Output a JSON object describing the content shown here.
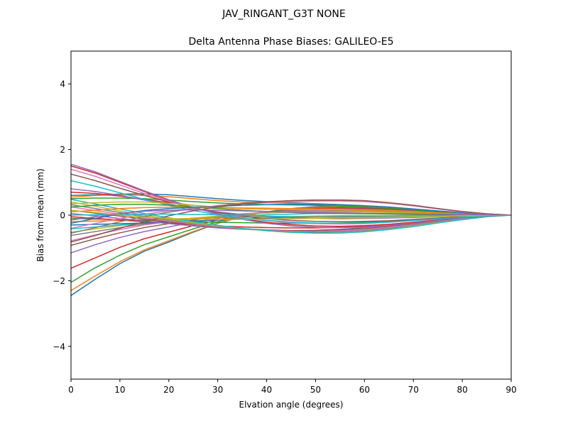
{
  "chart_data": {
    "type": "line",
    "suptitle": "JAV_RINGANT_G3T NONE",
    "title": "Delta Antenna Phase Biases: GALILEO-E5",
    "xlabel": "Elvation angle (degrees)",
    "ylabel": "Bias from mean (mm)",
    "xlim": [
      0,
      90
    ],
    "ylim": [
      -5,
      5
    ],
    "xticks": [
      0,
      10,
      20,
      30,
      40,
      50,
      60,
      70,
      80,
      90
    ],
    "yticks": [
      -4,
      -2,
      0,
      2,
      4
    ],
    "xtick_labels": [
      "0",
      "10",
      "20",
      "30",
      "40",
      "50",
      "60",
      "70",
      "80",
      "90"
    ],
    "ytick_labels": [
      "−4",
      "−2",
      "0",
      "2",
      "4"
    ],
    "grid": false,
    "legend": "none",
    "x": [
      0,
      5,
      10,
      15,
      20,
      25,
      30,
      35,
      40,
      45,
      50,
      55,
      60,
      65,
      70,
      75,
      80,
      85,
      90
    ],
    "series": [
      {
        "color": "#1f77b4",
        "values": [
          -2.45,
          -1.95,
          -1.48,
          -1.1,
          -0.82,
          -0.52,
          -0.25,
          -0.05,
          0.1,
          0.2,
          0.26,
          0.28,
          0.27,
          0.23,
          0.17,
          0.11,
          0.06,
          0.02,
          0.0
        ]
      },
      {
        "color": "#ff7f0e",
        "values": [
          -2.3,
          -1.85,
          -1.42,
          -1.06,
          -0.78,
          -0.5,
          -0.24,
          -0.04,
          0.1,
          0.19,
          0.24,
          0.26,
          0.25,
          0.22,
          0.17,
          0.11,
          0.06,
          0.02,
          0.0
        ]
      },
      {
        "color": "#2ca02c",
        "values": [
          -2.05,
          -1.6,
          -1.22,
          -0.9,
          -0.66,
          -0.42,
          -0.2,
          -0.02,
          0.1,
          0.18,
          0.22,
          0.24,
          0.23,
          0.2,
          0.15,
          0.1,
          0.05,
          0.02,
          0.0
        ]
      },
      {
        "color": "#d62728",
        "values": [
          -1.62,
          -1.3,
          -0.98,
          -0.72,
          -0.52,
          -0.32,
          -0.15,
          0.0,
          0.1,
          0.16,
          0.2,
          0.21,
          0.2,
          0.18,
          0.14,
          0.09,
          0.05,
          0.02,
          0.0
        ]
      },
      {
        "color": "#9467bd",
        "values": [
          -1.15,
          -0.9,
          -0.68,
          -0.5,
          -0.36,
          -0.22,
          -0.1,
          0.02,
          0.1,
          0.15,
          0.18,
          0.19,
          0.18,
          0.16,
          0.12,
          0.08,
          0.04,
          0.01,
          0.0
        ]
      },
      {
        "color": "#8c564b",
        "values": [
          -0.92,
          -0.72,
          -0.54,
          -0.38,
          -0.26,
          -0.15,
          -0.06,
          0.03,
          0.09,
          0.13,
          0.15,
          0.16,
          0.15,
          0.13,
          0.1,
          0.07,
          0.04,
          0.01,
          0.0
        ]
      },
      {
        "color": "#e377c2",
        "values": [
          -0.78,
          -0.6,
          -0.44,
          -0.3,
          -0.2,
          -0.11,
          -0.03,
          0.04,
          0.09,
          0.12,
          0.14,
          0.15,
          0.14,
          0.12,
          0.09,
          0.06,
          0.03,
          0.01,
          0.0
        ]
      },
      {
        "color": "#7f7f7f",
        "values": [
          -0.62,
          -0.5,
          -0.38,
          -0.27,
          -0.18,
          -0.1,
          -0.03,
          0.03,
          0.07,
          0.1,
          0.12,
          0.12,
          0.11,
          0.1,
          0.08,
          0.05,
          0.03,
          0.01,
          0.0
        ]
      },
      {
        "color": "#bcbd22",
        "values": [
          -0.52,
          -0.42,
          -0.32,
          -0.24,
          -0.16,
          -0.09,
          -0.03,
          0.02,
          0.06,
          0.09,
          0.1,
          0.1,
          0.1,
          0.08,
          0.06,
          0.04,
          0.02,
          0.01,
          0.0
        ]
      },
      {
        "color": "#17becf",
        "values": [
          -0.42,
          -0.36,
          -0.3,
          -0.24,
          -0.18,
          -0.12,
          -0.07,
          -0.03,
          0.01,
          0.03,
          0.05,
          0.05,
          0.05,
          0.04,
          0.03,
          0.02,
          0.01,
          0.0,
          0.0
        ]
      },
      {
        "color": "#1f77b4",
        "values": [
          -0.3,
          -0.28,
          -0.26,
          -0.24,
          -0.21,
          -0.18,
          -0.15,
          -0.12,
          -0.09,
          -0.07,
          -0.05,
          -0.04,
          -0.03,
          -0.03,
          -0.02,
          -0.01,
          -0.01,
          0.0,
          0.0
        ]
      },
      {
        "color": "#ff7f0e",
        "values": [
          -0.2,
          -0.18,
          -0.16,
          -0.14,
          -0.12,
          -0.1,
          -0.08,
          -0.06,
          -0.05,
          -0.04,
          -0.03,
          -0.02,
          -0.02,
          -0.02,
          -0.01,
          -0.01,
          0.0,
          0.0,
          0.0
        ]
      },
      {
        "color": "#2ca02c",
        "values": [
          -0.1,
          -0.12,
          -0.14,
          -0.16,
          -0.18,
          -0.2,
          -0.22,
          -0.23,
          -0.24,
          -0.25,
          -0.25,
          -0.24,
          -0.22,
          -0.19,
          -0.15,
          -0.1,
          -0.06,
          -0.02,
          0.0
        ]
      },
      {
        "color": "#d62728",
        "values": [
          -0.05,
          -0.1,
          -0.15,
          -0.2,
          -0.25,
          -0.29,
          -0.33,
          -0.36,
          -0.38,
          -0.39,
          -0.39,
          -0.37,
          -0.33,
          -0.28,
          -0.22,
          -0.15,
          -0.08,
          -0.03,
          0.0
        ]
      },
      {
        "color": "#9467bd",
        "values": [
          0.05,
          -0.02,
          -0.1,
          -0.18,
          -0.26,
          -0.33,
          -0.39,
          -0.43,
          -0.46,
          -0.47,
          -0.46,
          -0.43,
          -0.38,
          -0.32,
          -0.25,
          -0.17,
          -0.09,
          -0.03,
          0.0
        ]
      },
      {
        "color": "#8c564b",
        "values": [
          0.15,
          0.06,
          -0.03,
          -0.12,
          -0.21,
          -0.29,
          -0.36,
          -0.41,
          -0.45,
          -0.47,
          -0.47,
          -0.45,
          -0.41,
          -0.35,
          -0.27,
          -0.18,
          -0.1,
          -0.03,
          0.0
        ]
      },
      {
        "color": "#e377c2",
        "values": [
          0.25,
          0.14,
          0.03,
          -0.08,
          -0.18,
          -0.27,
          -0.35,
          -0.41,
          -0.46,
          -0.49,
          -0.5,
          -0.48,
          -0.44,
          -0.37,
          -0.29,
          -0.2,
          -0.11,
          -0.04,
          0.0
        ]
      },
      {
        "color": "#7f7f7f",
        "values": [
          0.32,
          0.2,
          0.08,
          -0.04,
          -0.15,
          -0.25,
          -0.34,
          -0.41,
          -0.47,
          -0.51,
          -0.52,
          -0.51,
          -0.47,
          -0.4,
          -0.31,
          -0.21,
          -0.12,
          -0.04,
          0.0
        ]
      },
      {
        "color": "#bcbd22",
        "values": [
          0.4,
          0.27,
          0.13,
          0.0,
          -0.12,
          -0.23,
          -0.33,
          -0.41,
          -0.48,
          -0.53,
          -0.55,
          -0.54,
          -0.5,
          -0.43,
          -0.33,
          -0.23,
          -0.13,
          -0.05,
          0.0
        ]
      },
      {
        "color": "#17becf",
        "values": [
          0.48,
          0.34,
          0.19,
          0.05,
          -0.08,
          -0.2,
          -0.31,
          -0.4,
          -0.47,
          -0.52,
          -0.55,
          -0.55,
          -0.51,
          -0.44,
          -0.35,
          -0.24,
          -0.14,
          -0.05,
          0.0
        ]
      },
      {
        "color": "#1f77b4",
        "values": [
          0.6,
          0.62,
          0.64,
          0.65,
          0.62,
          0.56,
          0.5,
          0.45,
          0.41,
          0.38,
          0.35,
          0.32,
          0.28,
          0.23,
          0.17,
          0.11,
          0.06,
          0.02,
          0.0
        ]
      },
      {
        "color": "#ff7f0e",
        "values": [
          0.55,
          0.6,
          0.62,
          0.6,
          0.56,
          0.5,
          0.44,
          0.4,
          0.38,
          0.36,
          0.34,
          0.31,
          0.27,
          0.22,
          0.17,
          0.11,
          0.06,
          0.02,
          0.0
        ]
      },
      {
        "color": "#2ca02c",
        "values": [
          0.5,
          0.52,
          0.52,
          0.5,
          0.46,
          0.41,
          0.37,
          0.34,
          0.32,
          0.31,
          0.3,
          0.28,
          0.25,
          0.21,
          0.16,
          0.1,
          0.06,
          0.02,
          0.0
        ]
      },
      {
        "color": "#d62728",
        "values": [
          0.7,
          0.66,
          0.58,
          0.48,
          0.38,
          0.3,
          0.24,
          0.2,
          0.18,
          0.17,
          0.17,
          0.16,
          0.15,
          0.13,
          0.1,
          0.07,
          0.04,
          0.01,
          0.0
        ]
      },
      {
        "color": "#9467bd",
        "values": [
          0.8,
          0.72,
          0.6,
          0.46,
          0.33,
          0.2,
          0.1,
          0.02,
          -0.04,
          -0.08,
          -0.1,
          -0.11,
          -0.1,
          -0.09,
          -0.07,
          -0.05,
          -0.03,
          -0.01,
          0.0
        ]
      },
      {
        "color": "#8c564b",
        "values": [
          1.25,
          1.05,
          0.82,
          0.6,
          0.4,
          0.22,
          0.08,
          -0.03,
          -0.11,
          -0.16,
          -0.19,
          -0.2,
          -0.19,
          -0.17,
          -0.13,
          -0.09,
          -0.05,
          -0.02,
          0.0
        ]
      },
      {
        "color": "#e377c2",
        "values": [
          1.4,
          1.18,
          0.92,
          0.66,
          0.43,
          0.22,
          0.05,
          -0.08,
          -0.17,
          -0.23,
          -0.26,
          -0.27,
          -0.26,
          -0.22,
          -0.17,
          -0.12,
          -0.07,
          -0.02,
          0.0
        ]
      },
      {
        "color": "#d62728",
        "values": [
          1.5,
          1.28,
          1.0,
          0.72,
          0.46,
          0.23,
          0.04,
          -0.11,
          -0.22,
          -0.29,
          -0.33,
          -0.34,
          -0.32,
          -0.28,
          -0.22,
          -0.15,
          -0.08,
          -0.03,
          0.0
        ]
      },
      {
        "color": "#9467bd",
        "values": [
          1.55,
          1.32,
          1.03,
          0.74,
          0.47,
          0.23,
          0.03,
          -0.13,
          -0.25,
          -0.33,
          -0.37,
          -0.38,
          -0.36,
          -0.31,
          -0.24,
          -0.16,
          -0.09,
          -0.03,
          0.0
        ]
      },
      {
        "color": "#17becf",
        "values": [
          1.05,
          0.88,
          0.68,
          0.48,
          0.3,
          0.14,
          0.01,
          -0.09,
          -0.16,
          -0.21,
          -0.24,
          -0.25,
          -0.24,
          -0.21,
          -0.16,
          -0.11,
          -0.06,
          -0.02,
          0.0
        ]
      },
      {
        "color": "#bcbd22",
        "values": [
          0.35,
          0.38,
          0.4,
          0.4,
          0.36,
          0.3,
          0.24,
          0.2,
          0.18,
          0.17,
          0.17,
          0.16,
          0.15,
          0.13,
          0.1,
          0.07,
          0.04,
          0.01,
          0.0
        ]
      },
      {
        "color": "#2ca02c",
        "values": [
          0.25,
          0.3,
          0.33,
          0.33,
          0.3,
          0.25,
          0.2,
          0.15,
          0.11,
          0.08,
          0.06,
          0.05,
          0.04,
          0.03,
          0.02,
          0.01,
          0.01,
          0.0,
          0.0
        ]
      },
      {
        "color": "#ff7f0e",
        "values": [
          0.1,
          0.15,
          0.2,
          0.23,
          0.24,
          0.24,
          0.23,
          0.22,
          0.21,
          0.2,
          0.19,
          0.18,
          0.16,
          0.14,
          0.11,
          0.07,
          0.04,
          0.01,
          0.0
        ]
      },
      {
        "color": "#1f77b4",
        "values": [
          -0.25,
          -0.1,
          0.04,
          0.14,
          0.2,
          0.24,
          0.27,
          0.3,
          0.32,
          0.33,
          0.33,
          0.32,
          0.29,
          0.25,
          0.19,
          0.13,
          0.07,
          0.02,
          0.0
        ]
      },
      {
        "color": "#e377c2",
        "values": [
          -0.4,
          -0.25,
          -0.1,
          0.03,
          0.13,
          0.21,
          0.28,
          0.34,
          0.38,
          0.41,
          0.43,
          0.43,
          0.41,
          0.36,
          0.28,
          0.19,
          0.1,
          0.03,
          0.0
        ]
      },
      {
        "color": "#7f7f7f",
        "values": [
          -0.55,
          -0.38,
          -0.2,
          -0.04,
          0.09,
          0.2,
          0.29,
          0.36,
          0.41,
          0.44,
          0.46,
          0.46,
          0.44,
          0.38,
          0.3,
          0.2,
          0.11,
          0.04,
          0.0
        ]
      },
      {
        "color": "#8c564b",
        "values": [
          -0.82,
          -0.62,
          -0.4,
          -0.2,
          -0.02,
          0.13,
          0.25,
          0.34,
          0.4,
          0.44,
          0.46,
          0.46,
          0.44,
          0.38,
          0.3,
          0.2,
          0.11,
          0.04,
          0.0
        ]
      },
      {
        "color": "#17becf",
        "values": [
          0.0,
          0.01,
          0.02,
          0.03,
          0.03,
          0.02,
          0.01,
          -0.01,
          -0.03,
          -0.05,
          -0.06,
          -0.06,
          -0.06,
          -0.05,
          -0.04,
          -0.03,
          -0.02,
          -0.01,
          0.0
        ]
      },
      {
        "color": "#bcbd22",
        "values": [
          0.15,
          0.08,
          0.0,
          -0.06,
          -0.1,
          -0.12,
          -0.13,
          -0.13,
          -0.12,
          -0.11,
          -0.1,
          -0.09,
          -0.08,
          -0.07,
          -0.05,
          -0.04,
          -0.02,
          -0.01,
          0.0
        ]
      },
      {
        "color": "#9467bd",
        "values": [
          -0.15,
          -0.05,
          0.05,
          0.12,
          0.15,
          0.16,
          0.15,
          0.13,
          0.11,
          0.09,
          0.08,
          0.07,
          0.06,
          0.05,
          0.04,
          0.03,
          0.02,
          0.01,
          0.0
        ]
      }
    ]
  }
}
